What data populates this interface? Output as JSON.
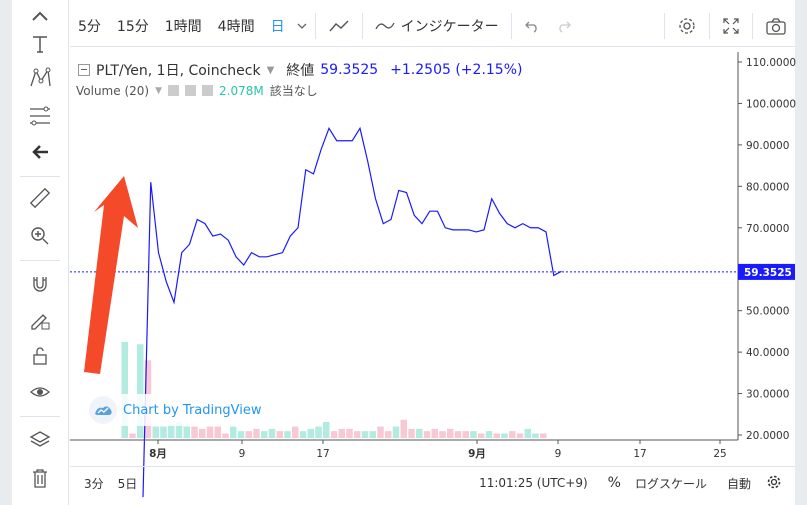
{
  "toolbar": {
    "intervals": [
      "5分",
      "15分",
      "1時間",
      "4時間",
      "日"
    ],
    "selected_interval": "日",
    "indicators_label": "インジケーター"
  },
  "legend": {
    "symbol": "PLT/Yen, 1日, Coincheck",
    "close_label": "終値",
    "close_value": "59.3525",
    "change": "+1.2505 (+2.15%)",
    "volume_label": "Volume (20)",
    "volume_value": "2.078M",
    "volume_extra": "該当なし"
  },
  "watermark": "Chart by TradingView",
  "bottom": {
    "range_3m": "3分",
    "range_5d": "5日",
    "time": "11:01:25 (UTC+9)",
    "percent": "%",
    "log_scale": "ログスケール",
    "auto": "自動"
  },
  "colors": {
    "price_line": "#1a1aff",
    "vol_up": "#b2ebe0",
    "vol_down": "#f8c9d4",
    "last_price_bg": "#1a1aff",
    "arrow": "#f44a2a"
  },
  "chart_data": {
    "type": "line",
    "title": "PLT/Yen, 1日, Coincheck",
    "y_axis_ticks": [
      "110.0000",
      "100.0000",
      "90.0000",
      "80.0000",
      "70.0000",
      "60.0000",
      "50.0000",
      "40.0000",
      "30.0000",
      "20.0000"
    ],
    "ylim": [
      20,
      110
    ],
    "x_axis_ticks": [
      "8月",
      "9",
      "17",
      "9月",
      "9",
      "17",
      "25"
    ],
    "last_price": "59.3525",
    "series": [
      {
        "values": [
          5,
          81,
          64,
          57,
          52,
          64,
          66,
          72,
          71,
          68,
          68.5,
          67,
          63,
          61,
          64,
          63,
          63,
          63.5,
          64,
          68,
          70,
          84,
          83,
          89,
          94,
          91,
          91,
          91,
          94,
          86,
          77,
          71,
          72,
          79,
          78.5,
          73,
          71,
          74,
          74,
          70,
          69.5,
          69.5,
          69.5,
          69,
          69.5,
          77,
          73.5,
          71,
          70,
          71,
          70,
          70,
          69,
          58.5,
          59.5
        ]
      }
    ],
    "volume": {
      "values": [
        42,
        2,
        41,
        34,
        5,
        5,
        6,
        7,
        5,
        5,
        4,
        5,
        5,
        2,
        5,
        3,
        3,
        4,
        3,
        4,
        3,
        3,
        5,
        3,
        4,
        5,
        7,
        3,
        4,
        4,
        3,
        3,
        3,
        5,
        3,
        5,
        8,
        4,
        4,
        3,
        4,
        3,
        4,
        3,
        3,
        3,
        2,
        3,
        2,
        2,
        3,
        2,
        4,
        2,
        2
      ],
      "up": [
        true,
        false,
        true,
        false,
        true,
        true,
        true,
        true,
        true,
        false,
        false,
        false,
        false,
        false,
        true,
        true,
        false,
        false,
        true,
        true,
        false,
        true,
        false,
        true,
        true,
        true,
        true,
        false,
        false,
        false,
        false,
        true,
        true,
        false,
        false,
        true,
        false,
        false,
        true,
        false,
        false,
        false,
        false,
        false,
        false,
        true,
        false,
        true,
        false,
        true,
        false,
        false,
        true,
        true,
        false
      ]
    }
  }
}
